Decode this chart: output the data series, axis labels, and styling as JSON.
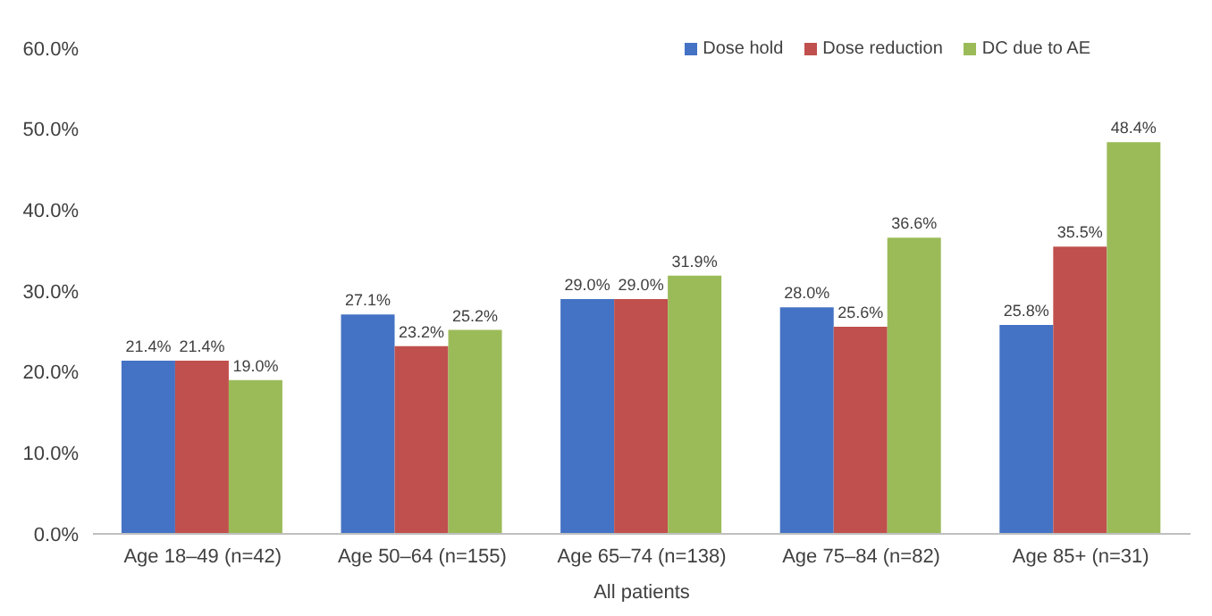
{
  "chart_data": {
    "type": "bar",
    "xlabel": "All patients",
    "categories": [
      "Age 18–49 (n=42)",
      "Age 50–64 (n=155)",
      "Age 65–74 (n=138)",
      "Age 75–84 (n=82)",
      "Age 85+ (n=31)"
    ],
    "series": [
      {
        "name": "Dose hold",
        "color": "#4472c4",
        "values": [
          21.4,
          27.1,
          29.0,
          28.0,
          25.8
        ],
        "value_labels": [
          "21.4%",
          "27.1%",
          "29.0%",
          "28.0%",
          "25.8%"
        ]
      },
      {
        "name": "Dose reduction",
        "color": "#c0504d",
        "values": [
          21.4,
          23.2,
          29.0,
          25.6,
          35.5
        ],
        "value_labels": [
          "21.4%",
          "23.2%",
          "29.0%",
          "25.6%",
          "35.5%"
        ]
      },
      {
        "name": "DC due to AE",
        "color": "#9bbb59",
        "values": [
          19.0,
          25.2,
          31.9,
          36.6,
          48.4
        ],
        "value_labels": [
          "19.0%",
          "25.2%",
          "31.9%",
          "36.6%",
          "48.4%"
        ]
      }
    ],
    "ylim": [
      0,
      60
    ],
    "yticks": [
      {
        "value": 0,
        "label": "0.0%"
      },
      {
        "value": 10,
        "label": "10.0%"
      },
      {
        "value": 20,
        "label": "20.0%"
      },
      {
        "value": 30,
        "label": "30.0%"
      },
      {
        "value": 40,
        "label": "40.0%"
      },
      {
        "value": 50,
        "label": "50.0%"
      },
      {
        "value": 60,
        "label": "60.0%"
      }
    ],
    "grid": false,
    "legend": "top right"
  }
}
